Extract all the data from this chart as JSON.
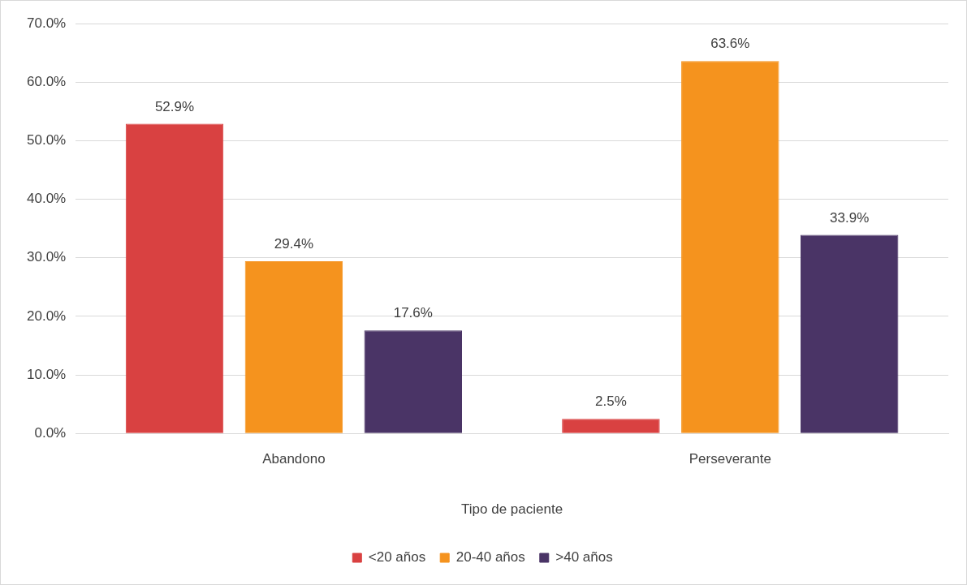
{
  "chart_data": {
    "type": "bar",
    "xlabel": "Tipo de paciente",
    "categories": [
      "Abandono",
      "Perseverante"
    ],
    "series": [
      {
        "name": "<20 años",
        "color": "#d94141",
        "values": [
          52.9,
          2.5
        ],
        "value_labels": [
          "52.9%",
          "2.5%"
        ]
      },
      {
        "name": "20-40 años",
        "color": "#f5931e",
        "values": [
          29.4,
          63.6
        ],
        "value_labels": [
          "29.4%",
          "63.6%"
        ]
      },
      {
        "name": ">40 años",
        "color": "#4a3466",
        "values": [
          17.6,
          33.9
        ],
        "value_labels": [
          "17.6%",
          "33.9%"
        ]
      }
    ],
    "ylim": [
      0,
      70
    ],
    "yticks": [
      {
        "value": 0,
        "label": "0.0%"
      },
      {
        "value": 10,
        "label": "10.0%"
      },
      {
        "value": 20,
        "label": "20.0%"
      },
      {
        "value": 30,
        "label": "30.0%"
      },
      {
        "value": 40,
        "label": "40.0%"
      },
      {
        "value": 50,
        "label": "50.0%"
      },
      {
        "value": 60,
        "label": "60.0%"
      },
      {
        "value": 70,
        "label": "70.0%"
      }
    ],
    "grid": "y",
    "legend": "bottom"
  }
}
